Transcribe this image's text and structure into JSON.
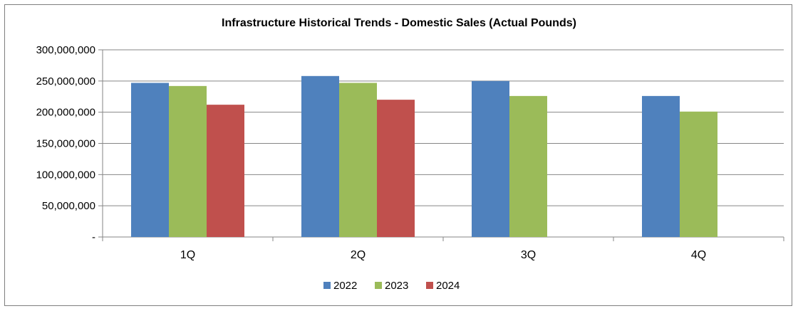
{
  "chart_data": {
    "type": "bar",
    "title": "Infrastructure Historical Trends - Domestic Sales (Actual Pounds)",
    "xlabel": "",
    "ylabel": "",
    "categories": [
      "1Q",
      "2Q",
      "3Q",
      "4Q"
    ],
    "ylim": [
      0,
      300000000
    ],
    "y_ticks": [
      0,
      50000000,
      100000000,
      150000000,
      200000000,
      250000000,
      300000000
    ],
    "y_tick_labels": [
      "-",
      "50,000,000",
      "100,000,000",
      "150,000,000",
      "200,000,000",
      "250,000,000",
      "300,000,000"
    ],
    "grid": true,
    "legend_position": "bottom",
    "series": [
      {
        "name": "2022",
        "color": "#4F81BD",
        "values": [
          247000000,
          258000000,
          250000000,
          226000000
        ]
      },
      {
        "name": "2023",
        "color": "#9BBB59",
        "values": [
          242000000,
          247000000,
          226000000,
          201000000
        ]
      },
      {
        "name": "2024",
        "color": "#C0504D",
        "values": [
          212000000,
          220000000,
          null,
          null
        ]
      }
    ]
  }
}
